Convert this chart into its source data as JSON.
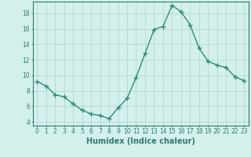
{
  "x": [
    0,
    1,
    2,
    3,
    4,
    5,
    6,
    7,
    8,
    9,
    10,
    11,
    12,
    13,
    14,
    15,
    16,
    17,
    18,
    19,
    20,
    21,
    22,
    23
  ],
  "y": [
    9.2,
    8.6,
    7.5,
    7.2,
    6.3,
    5.5,
    5.0,
    4.8,
    4.4,
    5.8,
    7.0,
    9.7,
    12.8,
    15.9,
    16.3,
    19.0,
    18.2,
    16.5,
    13.5,
    11.8,
    11.3,
    11.0,
    9.8,
    9.3
  ],
  "line_color": "#2E8B77",
  "marker": "+",
  "marker_size": 4,
  "bg_color": "#d4f0ec",
  "grid_color": "#b0d8d4",
  "xlabel": "Humidex (Indice chaleur)",
  "xlabel_fontsize": 7,
  "yticks": [
    4,
    6,
    8,
    10,
    12,
    14,
    16,
    18
  ],
  "xticks": [
    0,
    1,
    2,
    3,
    4,
    5,
    6,
    7,
    8,
    9,
    10,
    11,
    12,
    13,
    14,
    15,
    16,
    17,
    18,
    19,
    20,
    21,
    22,
    23
  ],
  "ylim": [
    3.5,
    19.5
  ],
  "xlim": [
    -0.5,
    23.5
  ],
  "tick_fontsize": 5.5,
  "axis_color": "#2E7B6E",
  "linewidth": 1.0,
  "marker_linewidth": 1.0
}
